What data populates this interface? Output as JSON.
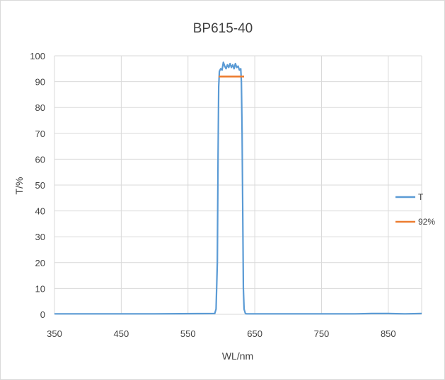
{
  "chart_data": {
    "type": "line",
    "title": "BP615-40",
    "xlabel": "WL/nm",
    "ylabel": "T/%",
    "xlim": [
      350,
      900
    ],
    "ylim": [
      0,
      100
    ],
    "x_ticks": [
      350,
      450,
      550,
      650,
      750,
      850
    ],
    "y_ticks": [
      0,
      10,
      20,
      30,
      40,
      50,
      60,
      70,
      80,
      90,
      100
    ],
    "grid": true,
    "legend_position": "right",
    "series": [
      {
        "name": "T",
        "color": "#5b9bd5",
        "x": [
          350,
          500,
          590,
          592,
          594,
          595,
          596,
          597,
          599,
          601,
          603,
          605,
          607,
          609,
          611,
          613,
          615,
          617,
          619,
          621,
          623,
          625,
          627,
          629,
          630,
          631,
          632,
          633,
          634,
          636,
          638,
          700,
          800,
          825,
          850,
          875,
          900
        ],
        "y": [
          0.2,
          0.2,
          0.3,
          2,
          20,
          60,
          88,
          94,
          95,
          94.5,
          97.5,
          96,
          95,
          96.5,
          95.5,
          97,
          95.5,
          96.5,
          95,
          97,
          95.5,
          96,
          94.5,
          95,
          90,
          70,
          40,
          10,
          2,
          0.3,
          0.2,
          0.2,
          0.2,
          0.3,
          0.3,
          0.2,
          0.3
        ]
      },
      {
        "name": "92%",
        "color": "#ed7d31",
        "x": [
          596,
          634
        ],
        "y": [
          92,
          92
        ]
      }
    ]
  }
}
